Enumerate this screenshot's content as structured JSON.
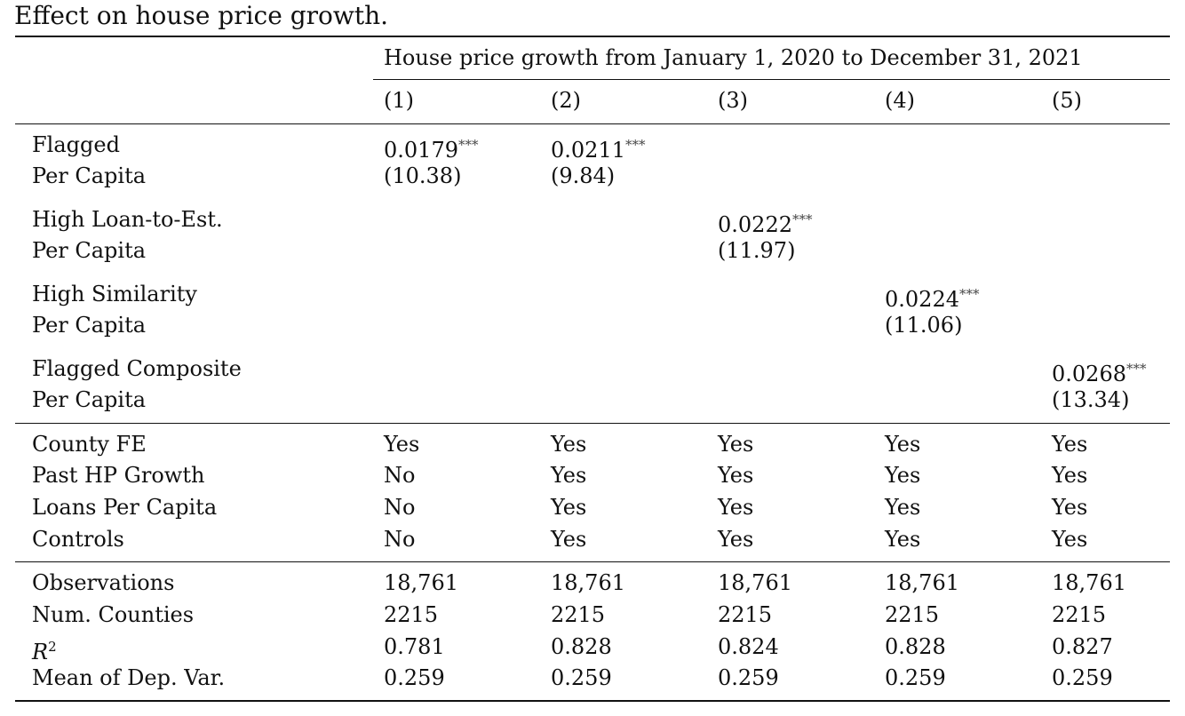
{
  "caption": "Effect on house price growth.",
  "table": {
    "group_header": "House price growth from January 1, 2020 to December 31, 2021",
    "columns": [
      "(1)",
      "(2)",
      "(3)",
      "(4)",
      "(5)"
    ],
    "coef_rows": [
      {
        "label1": "Flagged",
        "label2": "Per Capita",
        "cells": [
          {
            "coef": "0.0179",
            "stars": "***",
            "t": "(10.38)"
          },
          {
            "coef": "0.0211",
            "stars": "***",
            "t": "(9.84)"
          },
          {
            "coef": "",
            "stars": "",
            "t": ""
          },
          {
            "coef": "",
            "stars": "",
            "t": ""
          },
          {
            "coef": "",
            "stars": "",
            "t": ""
          }
        ]
      },
      {
        "label1": "High Loan-to-Est.",
        "label2": "Per Capita",
        "cells": [
          {
            "coef": "",
            "stars": "",
            "t": ""
          },
          {
            "coef": "",
            "stars": "",
            "t": ""
          },
          {
            "coef": "0.0222",
            "stars": "***",
            "t": "(11.97)"
          },
          {
            "coef": "",
            "stars": "",
            "t": ""
          },
          {
            "coef": "",
            "stars": "",
            "t": ""
          }
        ]
      },
      {
        "label1": "High Similarity",
        "label2": "Per Capita",
        "cells": [
          {
            "coef": "",
            "stars": "",
            "t": ""
          },
          {
            "coef": "",
            "stars": "",
            "t": ""
          },
          {
            "coef": "",
            "stars": "",
            "t": ""
          },
          {
            "coef": "0.0224",
            "stars": "***",
            "t": "(11.06)"
          },
          {
            "coef": "",
            "stars": "",
            "t": ""
          }
        ]
      },
      {
        "label1": "Flagged Composite",
        "label2": "Per Capita",
        "cells": [
          {
            "coef": "",
            "stars": "",
            "t": ""
          },
          {
            "coef": "",
            "stars": "",
            "t": ""
          },
          {
            "coef": "",
            "stars": "",
            "t": ""
          },
          {
            "coef": "",
            "stars": "",
            "t": ""
          },
          {
            "coef": "0.0268",
            "stars": "***",
            "t": "(13.34)"
          }
        ]
      }
    ],
    "fe_rows": [
      {
        "label": "County FE",
        "values": [
          "Yes",
          "Yes",
          "Yes",
          "Yes",
          "Yes"
        ]
      },
      {
        "label": "Past HP Growth",
        "values": [
          "No",
          "Yes",
          "Yes",
          "Yes",
          "Yes"
        ]
      },
      {
        "label": "Loans Per Capita",
        "values": [
          "No",
          "Yes",
          "Yes",
          "Yes",
          "Yes"
        ]
      },
      {
        "label": "Controls",
        "values": [
          "No",
          "Yes",
          "Yes",
          "Yes",
          "Yes"
        ]
      }
    ],
    "stat_rows": [
      {
        "label": "Observations",
        "values": [
          "18,761",
          "18,761",
          "18,761",
          "18,761",
          "18,761"
        ]
      },
      {
        "label": "Num. Counties",
        "values": [
          "2215",
          "2215",
          "2215",
          "2215",
          "2215"
        ]
      },
      {
        "label_base": "R",
        "label_sup": "2",
        "values": [
          "0.781",
          "0.828",
          "0.824",
          "0.828",
          "0.827"
        ]
      },
      {
        "label": "Mean of Dep. Var.",
        "values": [
          "0.259",
          "0.259",
          "0.259",
          "0.259",
          "0.259"
        ]
      }
    ]
  }
}
